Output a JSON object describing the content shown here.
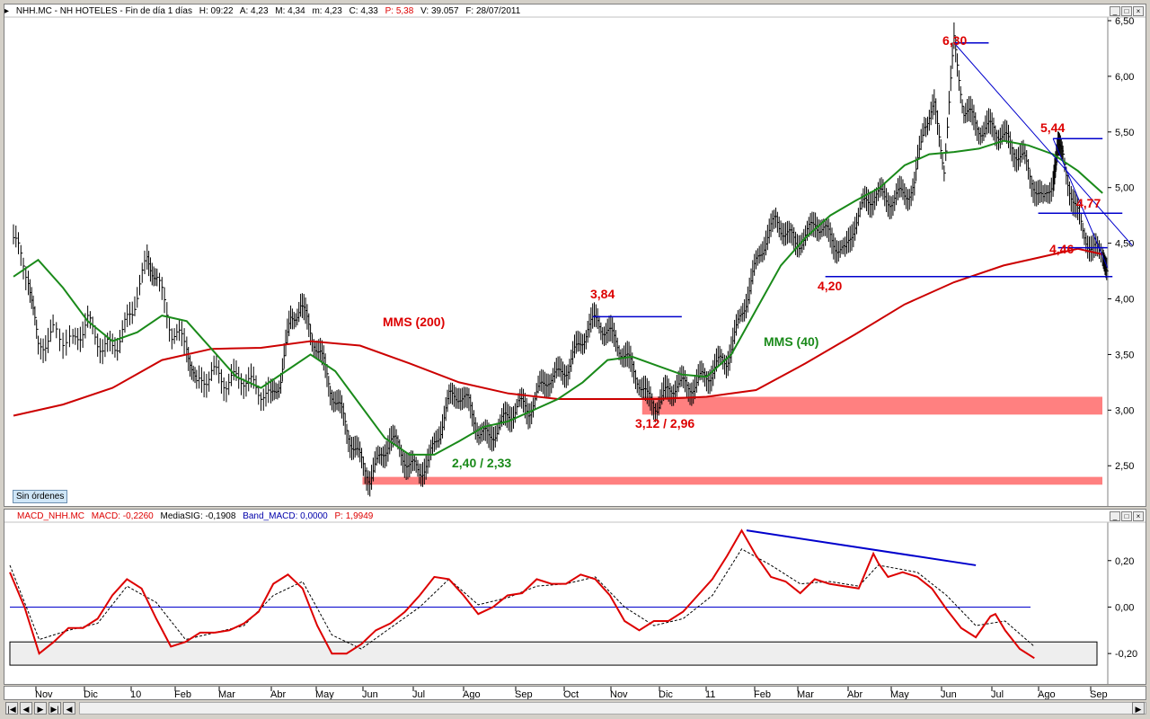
{
  "header": {
    "symbol": "NHH.MC - NH HOTELES - Fin de día 1 días",
    "h": "H: 09:22",
    "a": "A: 4,23",
    "m_high": "M: 4,34",
    "m_low": "m: 4,23",
    "c": "C: 4,33",
    "p": "P: 5,38",
    "v": "V: 39.057",
    "f": "F: 28/07/2011"
  },
  "macd_header": {
    "name": "MACD_NHH.MC",
    "macd": "MACD: -0,2260",
    "sig": "MediaSIG: -0,1908",
    "band": "Band_MACD: 0,0000",
    "p": "P: 1,9949"
  },
  "badge": {
    "label": "Sin órdenes"
  },
  "colors": {
    "price_bars": "#000000",
    "mms200": "#cc0000",
    "mms40": "#1a8a1a",
    "macd": "#dd0000",
    "signal": "#000000",
    "trend": "#0000cc",
    "support_zone": "#ff8080",
    "annotation": "#dd0000"
  },
  "chart_data": [
    {
      "type": "line",
      "title": "",
      "x_ticks": [
        "Nov",
        "Dic",
        "10",
        "Feb",
        "Mar",
        "Abr",
        "May",
        "Jun",
        "Jul",
        "Ago",
        "Sep",
        "Oct",
        "Nov",
        "Dic",
        "11",
        "Feb",
        "Mar",
        "Abr",
        "May",
        "Jun",
        "Jul",
        "Ago",
        "Sep"
      ],
      "y_ticks": [
        "6,50",
        "6,00",
        "5,50",
        "5,00",
        "4,50",
        "4,00",
        "3,50",
        "3,00",
        "2,50"
      ],
      "ylim": [
        2.3,
        6.5
      ],
      "xlim": [
        0,
        22.6
      ],
      "price_close": [
        [
          0,
          4.55
        ],
        [
          0.3,
          4.2
        ],
        [
          0.5,
          3.55
        ],
        [
          0.8,
          3.7
        ],
        [
          1.2,
          3.6
        ],
        [
          1.5,
          3.8
        ],
        [
          1.8,
          3.55
        ],
        [
          2.1,
          3.6
        ],
        [
          2.4,
          3.9
        ],
        [
          2.7,
          4.35
        ],
        [
          2.9,
          4.2
        ],
        [
          3.2,
          3.7
        ],
        [
          3.5,
          3.6
        ],
        [
          3.7,
          3.2
        ],
        [
          4.0,
          3.35
        ],
        [
          4.3,
          3.25
        ],
        [
          4.6,
          3.3
        ],
        [
          4.9,
          3.2
        ],
        [
          5.2,
          3.1
        ],
        [
          5.4,
          3.3
        ],
        [
          5.6,
          3.8
        ],
        [
          5.8,
          3.95
        ],
        [
          6.0,
          3.7
        ],
        [
          6.2,
          3.5
        ],
        [
          6.4,
          3.2
        ],
        [
          6.6,
          3.0
        ],
        [
          6.8,
          2.75
        ],
        [
          7.0,
          2.55
        ],
        [
          7.2,
          2.4
        ],
        [
          7.4,
          2.55
        ],
        [
          7.6,
          2.75
        ],
        [
          7.8,
          2.65
        ],
        [
          8.0,
          2.5
        ],
        [
          8.2,
          2.45
        ],
        [
          8.4,
          2.55
        ],
        [
          8.6,
          2.8
        ],
        [
          8.8,
          3.1
        ],
        [
          9.0,
          3.15
        ],
        [
          9.2,
          3.05
        ],
        [
          9.4,
          2.8
        ],
        [
          9.6,
          2.75
        ],
        [
          9.8,
          2.85
        ],
        [
          10.0,
          2.95
        ],
        [
          10.2,
          3.05
        ],
        [
          10.4,
          3.0
        ],
        [
          10.6,
          3.15
        ],
        [
          10.8,
          3.3
        ],
        [
          11.0,
          3.3
        ],
        [
          11.2,
          3.4
        ],
        [
          11.4,
          3.55
        ],
        [
          11.6,
          3.75
        ],
        [
          11.8,
          3.8
        ],
        [
          12.0,
          3.7
        ],
        [
          12.2,
          3.6
        ],
        [
          12.4,
          3.45
        ],
        [
          12.6,
          3.3
        ],
        [
          12.8,
          3.1
        ],
        [
          13.0,
          3.05
        ],
        [
          13.2,
          3.15
        ],
        [
          13.4,
          3.25
        ],
        [
          13.6,
          3.2
        ],
        [
          13.8,
          3.25
        ],
        [
          14.0,
          3.3
        ],
        [
          14.2,
          3.4
        ],
        [
          14.4,
          3.45
        ],
        [
          14.6,
          3.7
        ],
        [
          14.8,
          4.0
        ],
        [
          15.0,
          4.3
        ],
        [
          15.2,
          4.55
        ],
        [
          15.4,
          4.7
        ],
        [
          15.6,
          4.6
        ],
        [
          15.8,
          4.5
        ],
        [
          16.0,
          4.55
        ],
        [
          16.2,
          4.7
        ],
        [
          16.4,
          4.6
        ],
        [
          16.6,
          4.5
        ],
        [
          16.8,
          4.4
        ],
        [
          17.0,
          4.7
        ],
        [
          17.2,
          4.85
        ],
        [
          17.4,
          4.95
        ],
        [
          17.6,
          4.9
        ],
        [
          17.8,
          4.9
        ],
        [
          18.0,
          4.95
        ],
        [
          18.2,
          5.0
        ],
        [
          18.4,
          5.6
        ],
        [
          18.6,
          5.7
        ],
        [
          18.8,
          5.2
        ],
        [
          19.0,
          6.3
        ],
        [
          19.2,
          5.7
        ],
        [
          19.4,
          5.6
        ],
        [
          19.6,
          5.5
        ],
        [
          19.8,
          5.55
        ],
        [
          20.0,
          5.45
        ],
        [
          20.2,
          5.35
        ],
        [
          20.4,
          5.25
        ],
        [
          20.6,
          5.05
        ],
        [
          20.8,
          4.85
        ],
        [
          21.0,
          5.1
        ],
        [
          21.1,
          5.35
        ],
        [
          21.2,
          5.25
        ],
        [
          21.4,
          4.9
        ],
        [
          21.6,
          4.6
        ],
        [
          21.8,
          4.45
        ],
        [
          22.0,
          4.4
        ],
        [
          22.1,
          4.3
        ]
      ],
      "mms40": [
        [
          0,
          4.2
        ],
        [
          0.5,
          4.35
        ],
        [
          1.0,
          4.1
        ],
        [
          1.5,
          3.8
        ],
        [
          2.0,
          3.62
        ],
        [
          2.5,
          3.7
        ],
        [
          3.0,
          3.85
        ],
        [
          3.5,
          3.8
        ],
        [
          4.0,
          3.55
        ],
        [
          4.5,
          3.3
        ],
        [
          5.0,
          3.2
        ],
        [
          5.5,
          3.35
        ],
        [
          6.0,
          3.5
        ],
        [
          6.5,
          3.35
        ],
        [
          7.0,
          3.05
        ],
        [
          7.5,
          2.75
        ],
        [
          8.0,
          2.6
        ],
        [
          8.5,
          2.6
        ],
        [
          9.0,
          2.72
        ],
        [
          9.5,
          2.85
        ],
        [
          10.0,
          2.9
        ],
        [
          10.5,
          3.0
        ],
        [
          11.0,
          3.1
        ],
        [
          11.5,
          3.25
        ],
        [
          12.0,
          3.45
        ],
        [
          12.5,
          3.48
        ],
        [
          13.0,
          3.4
        ],
        [
          13.5,
          3.32
        ],
        [
          14.0,
          3.3
        ],
        [
          14.5,
          3.5
        ],
        [
          15.0,
          3.9
        ],
        [
          15.5,
          4.3
        ],
        [
          16.0,
          4.55
        ],
        [
          16.5,
          4.75
        ],
        [
          17.0,
          4.88
        ],
        [
          17.5,
          5.0
        ],
        [
          18.0,
          5.2
        ],
        [
          18.5,
          5.3
        ],
        [
          19.0,
          5.32
        ],
        [
          19.5,
          5.35
        ],
        [
          20.0,
          5.42
        ],
        [
          20.5,
          5.38
        ],
        [
          21.0,
          5.3
        ],
        [
          21.5,
          5.15
        ],
        [
          22.0,
          4.95
        ]
      ],
      "mms200": [
        [
          0,
          2.95
        ],
        [
          1.0,
          3.05
        ],
        [
          2.0,
          3.2
        ],
        [
          3.0,
          3.45
        ],
        [
          4.0,
          3.55
        ],
        [
          5.0,
          3.56
        ],
        [
          6.0,
          3.62
        ],
        [
          7.0,
          3.58
        ],
        [
          8.0,
          3.42
        ],
        [
          9.0,
          3.25
        ],
        [
          10.0,
          3.15
        ],
        [
          11.0,
          3.1
        ],
        [
          12.0,
          3.1
        ],
        [
          13.0,
          3.1
        ],
        [
          14.0,
          3.12
        ],
        [
          15.0,
          3.18
        ],
        [
          16.0,
          3.42
        ],
        [
          17.0,
          3.68
        ],
        [
          18.0,
          3.95
        ],
        [
          19.0,
          4.15
        ],
        [
          20.0,
          4.3
        ],
        [
          21.0,
          4.4
        ],
        [
          21.5,
          4.45
        ],
        [
          22.0,
          4.4
        ]
      ],
      "support_zones": [
        [
          2.96,
          3.12
        ],
        [
          2.33,
          2.4
        ]
      ],
      "annotations": [
        {
          "text": "6,30",
          "x": 19.0,
          "y": 6.3
        },
        {
          "text": "5,44",
          "x": 21.0,
          "y": 5.44
        },
        {
          "text": "4,77",
          "x": 20.8,
          "y": 4.77
        },
        {
          "text": "4,46",
          "x": 21.2,
          "y": 4.46
        },
        {
          "text": "4,20",
          "x": 16.5,
          "y": 4.2
        },
        {
          "text": "3,84",
          "x": 11.7,
          "y": 3.84
        },
        {
          "text": "3,12 / 2,96",
          "x": 12.9,
          "y": 3.12
        },
        {
          "text": "2,40 / 2,33",
          "x": 7.2,
          "y": 2.4
        },
        {
          "text": "MMS (200)",
          "x": 7.8,
          "y": 3.65
        },
        {
          "text": "MMS (40)",
          "x": 15.2,
          "y": 3.35
        }
      ]
    },
    {
      "type": "line",
      "title": "MACD",
      "y_ticks": [
        "0,20",
        "0,00",
        "-0,20"
      ],
      "ylim": [
        -0.3,
        0.35
      ],
      "macd": [
        [
          0,
          0.15
        ],
        [
          0.3,
          0.0
        ],
        [
          0.6,
          -0.2
        ],
        [
          0.9,
          -0.15
        ],
        [
          1.2,
          -0.09
        ],
        [
          1.5,
          -0.09
        ],
        [
          1.8,
          -0.05
        ],
        [
          2.1,
          0.05
        ],
        [
          2.4,
          0.12
        ],
        [
          2.7,
          0.08
        ],
        [
          3.0,
          -0.05
        ],
        [
          3.3,
          -0.17
        ],
        [
          3.6,
          -0.15
        ],
        [
          3.9,
          -0.11
        ],
        [
          4.2,
          -0.11
        ],
        [
          4.5,
          -0.1
        ],
        [
          4.8,
          -0.07
        ],
        [
          5.1,
          -0.02
        ],
        [
          5.4,
          0.1
        ],
        [
          5.7,
          0.14
        ],
        [
          6.0,
          0.08
        ],
        [
          6.3,
          -0.08
        ],
        [
          6.6,
          -0.2
        ],
        [
          6.9,
          -0.2
        ],
        [
          7.2,
          -0.16
        ],
        [
          7.5,
          -0.1
        ],
        [
          7.8,
          -0.07
        ],
        [
          8.1,
          -0.02
        ],
        [
          8.4,
          0.05
        ],
        [
          8.7,
          0.13
        ],
        [
          9.0,
          0.12
        ],
        [
          9.3,
          0.05
        ],
        [
          9.6,
          -0.03
        ],
        [
          9.9,
          0.0
        ],
        [
          10.2,
          0.05
        ],
        [
          10.5,
          0.06
        ],
        [
          10.8,
          0.12
        ],
        [
          11.1,
          0.1
        ],
        [
          11.4,
          0.1
        ],
        [
          11.7,
          0.14
        ],
        [
          12.0,
          0.12
        ],
        [
          12.3,
          0.05
        ],
        [
          12.6,
          -0.06
        ],
        [
          12.9,
          -0.1
        ],
        [
          13.2,
          -0.06
        ],
        [
          13.5,
          -0.06
        ],
        [
          13.8,
          -0.02
        ],
        [
          14.1,
          0.05
        ],
        [
          14.4,
          0.12
        ],
        [
          14.7,
          0.22
        ],
        [
          15.0,
          0.33
        ],
        [
          15.3,
          0.22
        ],
        [
          15.6,
          0.13
        ],
        [
          15.9,
          0.11
        ],
        [
          16.2,
          0.06
        ],
        [
          16.5,
          0.12
        ],
        [
          16.8,
          0.1
        ],
        [
          17.1,
          0.09
        ],
        [
          17.4,
          0.08
        ],
        [
          17.7,
          0.23
        ],
        [
          17.8,
          0.19
        ],
        [
          18.0,
          0.13
        ],
        [
          18.3,
          0.15
        ],
        [
          18.6,
          0.13
        ],
        [
          18.9,
          0.08
        ],
        [
          19.2,
          -0.01
        ],
        [
          19.5,
          -0.09
        ],
        [
          19.8,
          -0.13
        ],
        [
          20.1,
          -0.04
        ],
        [
          20.2,
          -0.03
        ],
        [
          20.4,
          -0.1
        ],
        [
          20.7,
          -0.18
        ],
        [
          21.0,
          -0.22
        ]
      ],
      "signal": [
        [
          0,
          0.18
        ],
        [
          0.6,
          -0.14
        ],
        [
          1.2,
          -0.1
        ],
        [
          1.8,
          -0.07
        ],
        [
          2.4,
          0.09
        ],
        [
          3.0,
          0.02
        ],
        [
          3.6,
          -0.14
        ],
        [
          4.2,
          -0.11
        ],
        [
          4.8,
          -0.08
        ],
        [
          5.4,
          0.05
        ],
        [
          6.0,
          0.11
        ],
        [
          6.6,
          -0.12
        ],
        [
          7.2,
          -0.18
        ],
        [
          7.8,
          -0.09
        ],
        [
          8.4,
          0.0
        ],
        [
          9.0,
          0.12
        ],
        [
          9.6,
          0.01
        ],
        [
          10.2,
          0.04
        ],
        [
          10.8,
          0.09
        ],
        [
          11.4,
          0.1
        ],
        [
          12.0,
          0.13
        ],
        [
          12.6,
          0.0
        ],
        [
          13.2,
          -0.08
        ],
        [
          13.8,
          -0.05
        ],
        [
          14.4,
          0.05
        ],
        [
          15.0,
          0.25
        ],
        [
          15.6,
          0.18
        ],
        [
          16.2,
          0.1
        ],
        [
          16.8,
          0.11
        ],
        [
          17.4,
          0.09
        ],
        [
          17.8,
          0.18
        ],
        [
          18.6,
          0.15
        ],
        [
          19.2,
          0.05
        ],
        [
          19.8,
          -0.08
        ],
        [
          20.4,
          -0.06
        ],
        [
          21.0,
          -0.17
        ]
      ],
      "zero_line": 0.0,
      "oversold_band": [
        -0.25,
        -0.15
      ]
    }
  ]
}
